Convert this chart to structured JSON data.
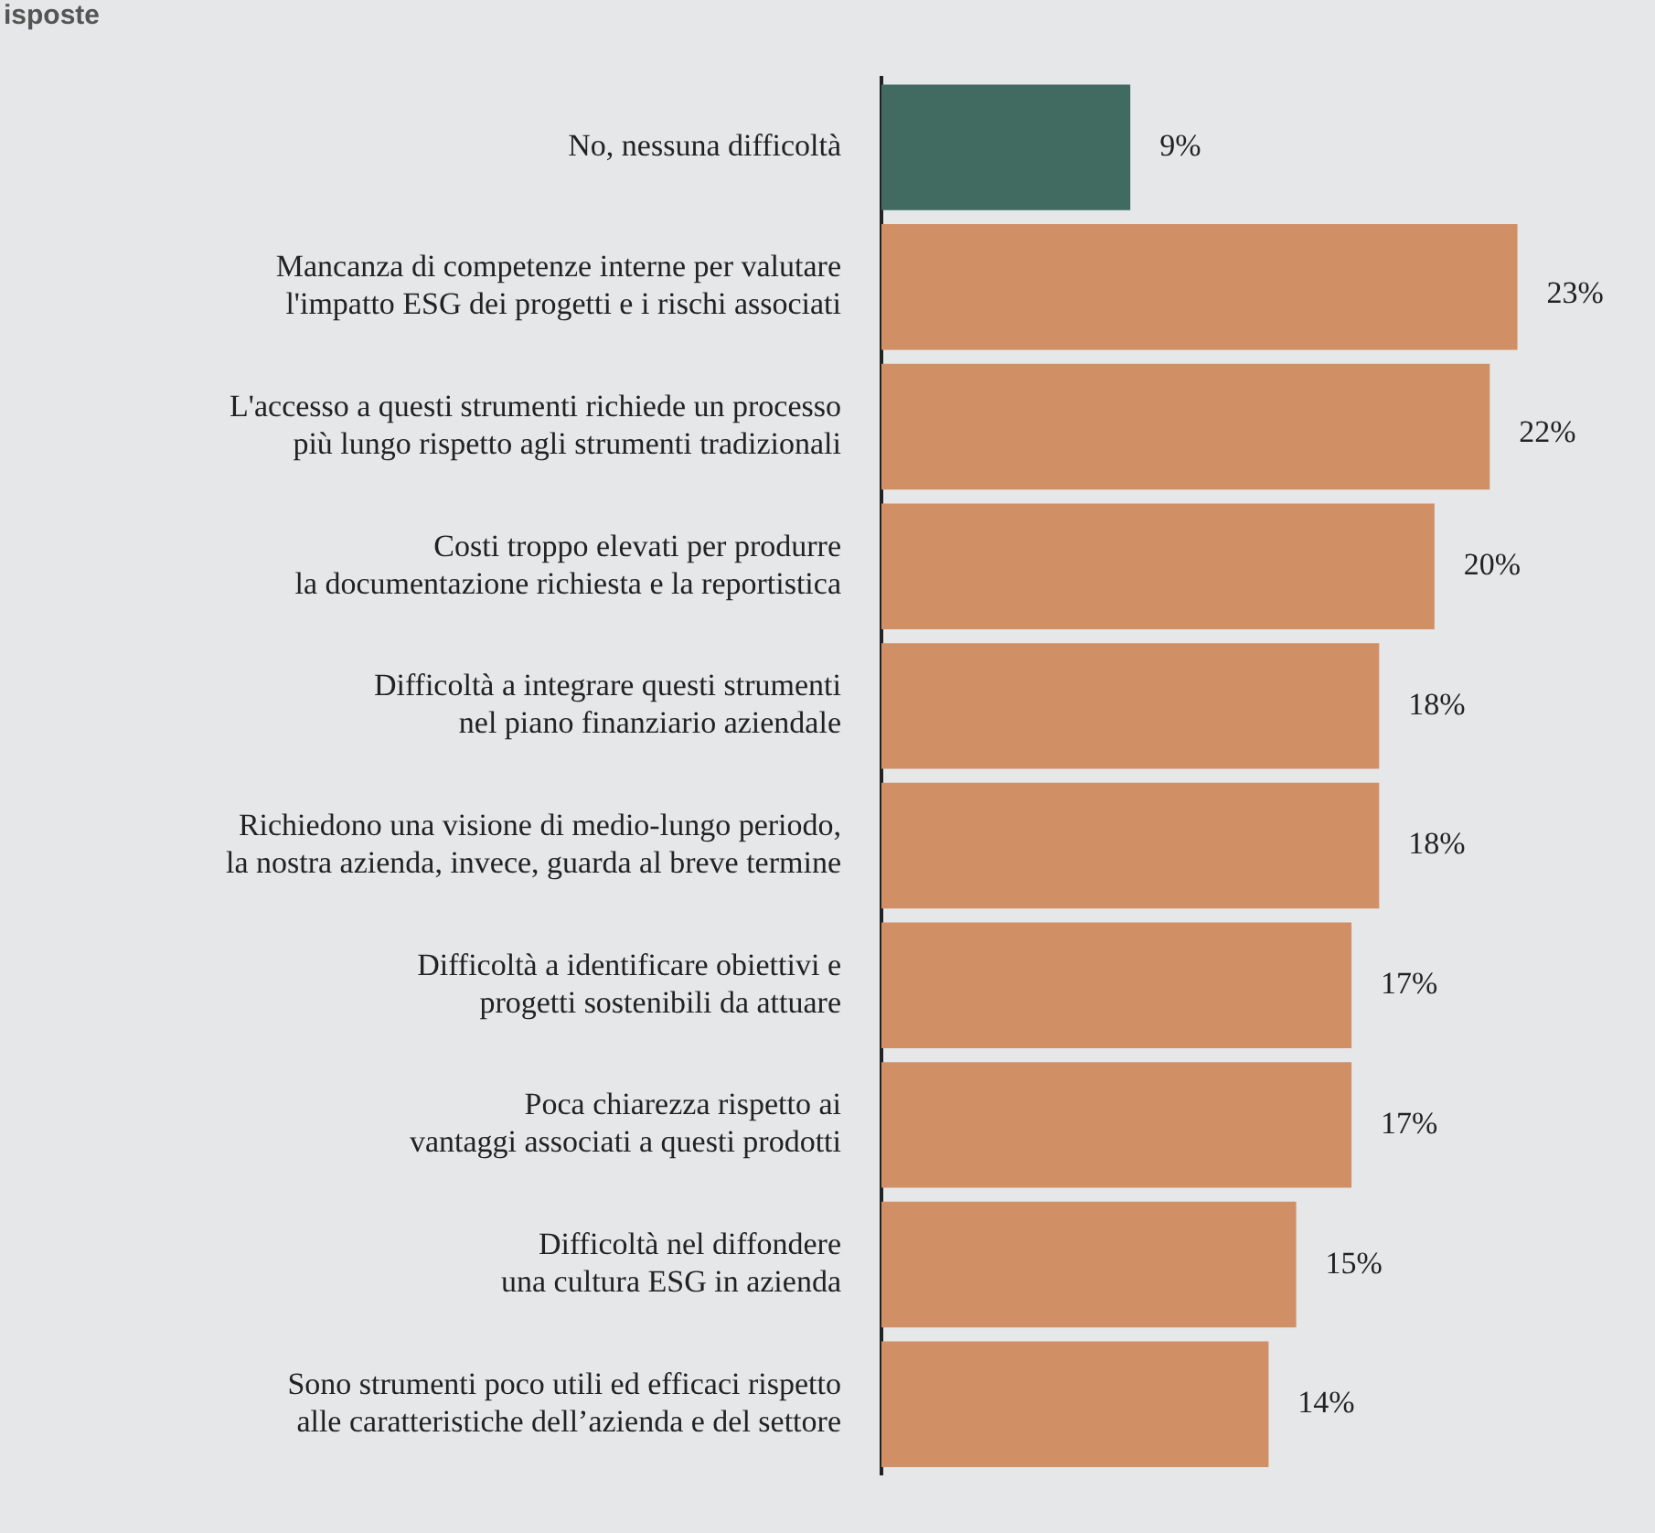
{
  "chart_data": {
    "type": "bar",
    "orientation": "horizontal",
    "title": "isposte",
    "categories": [
      "No, nessuna difficoltà",
      "Mancanza di competenze interne per valutare\nl'impatto ESG dei progetti e i rischi associati",
      "L'accesso a questi strumenti richiede un processo\npiù lungo rispetto agli strumenti tradizionali",
      "Costi troppo elevati per produrre\nla documentazione richiesta e la reportistica",
      "Difficoltà a integrare questi strumenti\nnel piano finanziario aziendale",
      "Richiedono una visione di medio-lungo periodo,\nla nostra azienda, invece, guarda al breve termine",
      "Difficoltà a identificare obiettivi e\nprogetti sostenibili da attuare",
      "Poca chiarezza rispetto ai\nvantaggi associati a questi prodotti",
      "Difficoltà nel diffondere\nuna cultura ESG in azienda",
      "Sono strumenti poco utili ed efficaci rispetto\nalle caratteristiche dell’azienda e del settore"
    ],
    "values": [
      9,
      23,
      22,
      20,
      18,
      18,
      17,
      17,
      15,
      14
    ],
    "colors": [
      "#416b60",
      "#d08f65",
      "#d08f65",
      "#d08f65",
      "#d08f65",
      "#d08f65",
      "#d08f65",
      "#d08f65",
      "#d08f65",
      "#d08f65"
    ],
    "value_labels": [
      "9%",
      "23%",
      "22%",
      "20%",
      "18%",
      "18%",
      "17%",
      "17%",
      "15%",
      "14%"
    ],
    "tick_labels": "y",
    "grid": false,
    "legend": false
  }
}
